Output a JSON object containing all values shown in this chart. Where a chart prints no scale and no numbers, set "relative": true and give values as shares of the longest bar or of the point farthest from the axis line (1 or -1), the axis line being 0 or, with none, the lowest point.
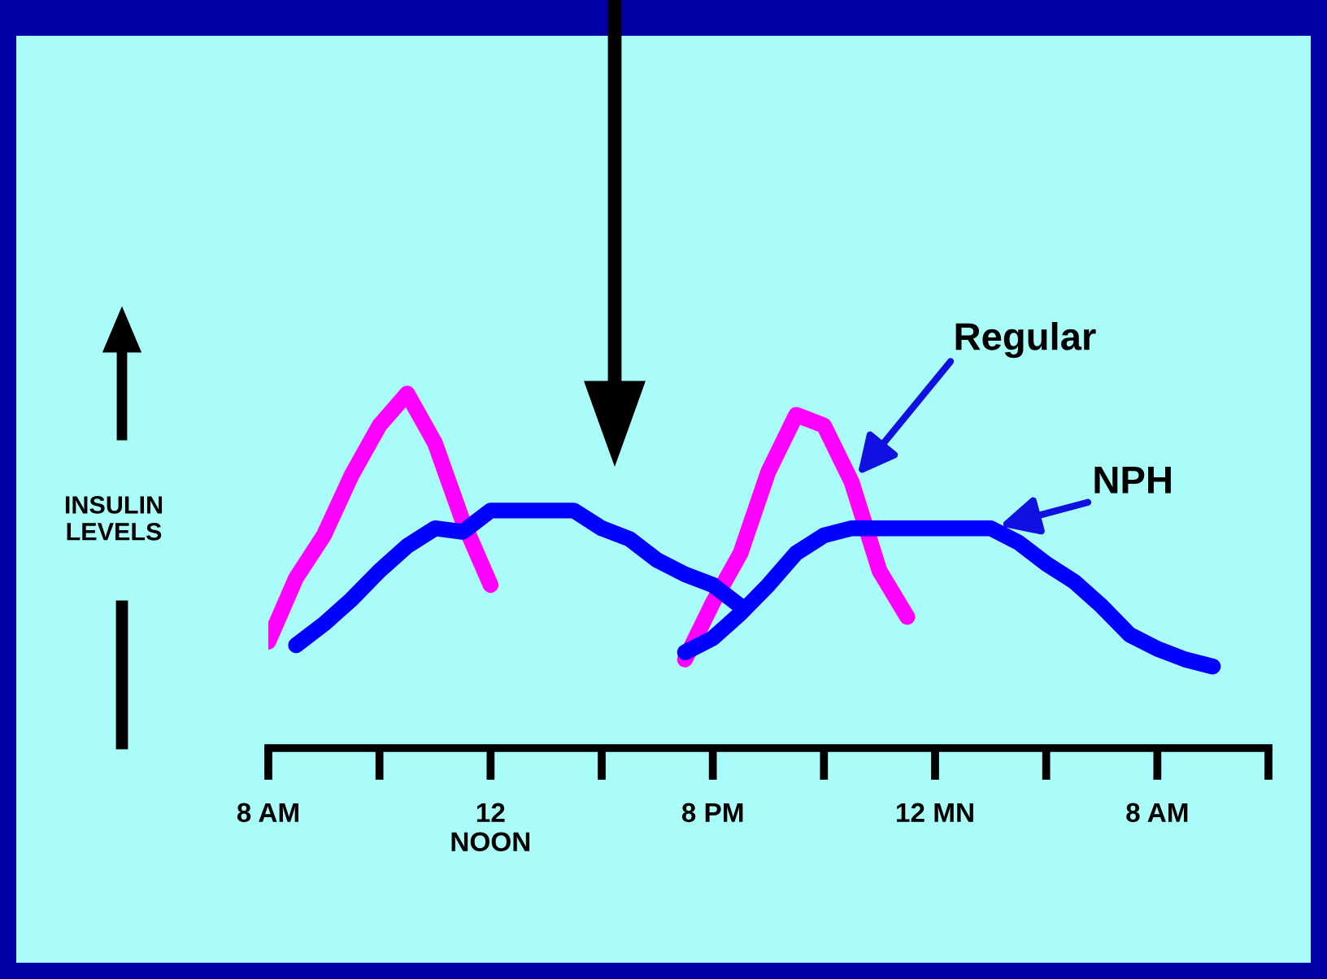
{
  "chart_data": {
    "type": "line",
    "relative": true,
    "ylabel": "INSULIN\nLEVELS",
    "categories": [
      "8 AM",
      null,
      null,
      null,
      null,
      null,
      null,
      null,
      "12\nNOON",
      null,
      null,
      null,
      null,
      null,
      null,
      null,
      "8 PM",
      null,
      null,
      null,
      null,
      null,
      null,
      null,
      "12 MN",
      null,
      null,
      null,
      null,
      null,
      null,
      null,
      "8 AM",
      null,
      null,
      null,
      null
    ],
    "tick_labels": "x",
    "grid": false,
    "legend": false,
    "marker": "none",
    "line_style": "solid",
    "series": [
      {
        "name": "Regular",
        "color": "#ff00ff",
        "values": [
          0.3,
          0.48,
          0.6,
          0.77,
          0.91,
          1.0,
          0.86,
          0.64,
          0.46,
          null,
          null,
          null,
          null,
          null,
          null,
          0.25,
          0.41,
          0.55,
          0.78,
          0.94,
          0.91,
          0.75,
          0.5,
          0.37,
          null,
          null,
          null,
          null,
          null,
          null,
          null,
          null,
          null,
          null,
          null,
          null,
          null
        ]
      },
      {
        "color": "#0000ff",
        "values": [
          null,
          0.29,
          0.35,
          0.42,
          0.5,
          0.57,
          0.62,
          0.61,
          0.67,
          0.67,
          0.67,
          0.67,
          0.62,
          0.59,
          0.53,
          0.49,
          0.46,
          0.4,
          null,
          null,
          null,
          null,
          null,
          null,
          null,
          null,
          null,
          null,
          null,
          null,
          null,
          null,
          null,
          null,
          null,
          null,
          null
        ]
      },
      {
        "name": "NPH",
        "color": "#0000ff",
        "values": [
          null,
          null,
          null,
          null,
          null,
          null,
          null,
          null,
          null,
          null,
          null,
          null,
          null,
          null,
          null,
          0.27,
          0.31,
          0.38,
          0.46,
          0.55,
          0.6,
          0.62,
          0.62,
          0.62,
          0.62,
          0.62,
          0.62,
          0.58,
          0.52,
          0.47,
          0.4,
          0.32,
          0.28,
          0.25,
          0.23,
          null,
          null
        ]
      }
    ]
  }
}
